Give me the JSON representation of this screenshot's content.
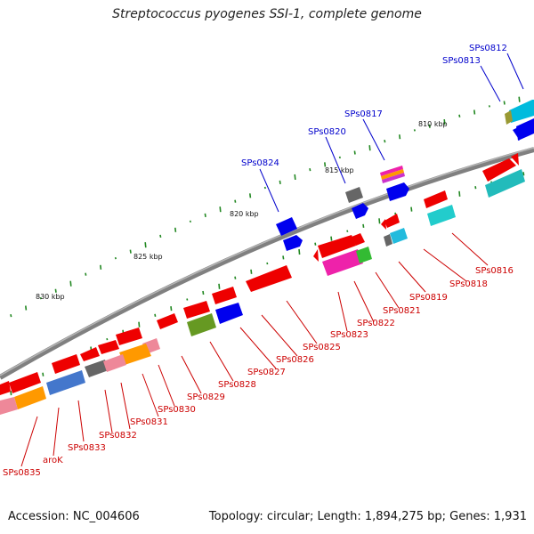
{
  "title": "Streptococcus pyogenes SSI-1, complete genome",
  "footer": {
    "accession": "Accession: NC_004606",
    "summary": "Topology: circular; Length: 1,894,275 bp; Genes: 1,931"
  },
  "colors": {
    "backbone": "#7a7a7a",
    "label_reverse": "#cc0000",
    "label_forward": "#0000cc",
    "gc_marks": "#228822",
    "gene_red": "#ee0000",
    "gene_blue": "#0000ee",
    "gene_cyan": "#00bbcc",
    "gene_magenta": "#ee22aa",
    "gene_orange": "#ff9900",
    "gene_grey": "#666666",
    "gene_green": "#66aa22",
    "gene_pink": "#ee8899",
    "gene_steelblue": "#4488cc"
  },
  "position_ticks": [
    "810 kbp",
    "815 kbp",
    "820 kbp",
    "825 kbp",
    "830 kbp"
  ],
  "forward_labels": [
    "SPs0812",
    "SPs0813",
    "SPs0817",
    "SPs0820",
    "SPs0824"
  ],
  "reverse_labels": [
    "SPs0816",
    "SPs0818",
    "SPs0819",
    "SPs0821",
    "SPs0822",
    "SPs0823",
    "SPs0825",
    "SPs0826",
    "SPs0827",
    "SPs0828",
    "SPs0829",
    "SPs0830",
    "SPs0831",
    "SPs0832",
    "SPs0833",
    "aroK",
    "SPs0835"
  ]
}
